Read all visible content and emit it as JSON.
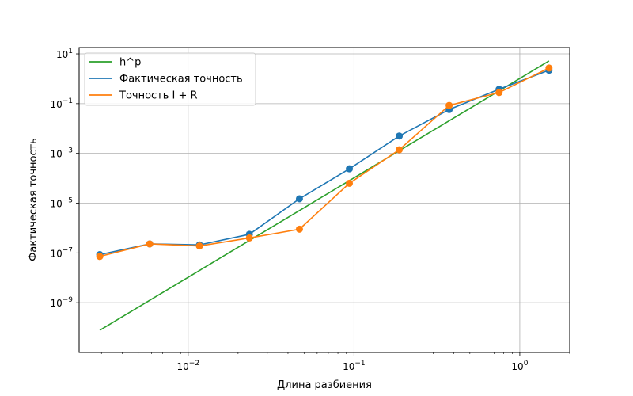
{
  "chart_data": {
    "type": "line",
    "title": "",
    "xlabel": "Длина разбиения",
    "ylabel": "Фактическая точность",
    "xscale": "log",
    "yscale": "log",
    "xlim": [
      0.0022,
      2.0
    ],
    "ylim": [
      1e-11,
      18
    ],
    "grid": true,
    "legend_position": "top-left",
    "x_ticks": [
      {
        "value": 0.01,
        "base": "10",
        "exp": "−2"
      },
      {
        "value": 0.1,
        "base": "10",
        "exp": "−1"
      },
      {
        "value": 1,
        "base": "10",
        "exp": "0"
      }
    ],
    "y_ticks": [
      {
        "value": 1e-09,
        "base": "10",
        "exp": "−9"
      },
      {
        "value": 1e-07,
        "base": "10",
        "exp": "−7"
      },
      {
        "value": 1e-05,
        "base": "10",
        "exp": "−5"
      },
      {
        "value": 0.001,
        "base": "10",
        "exp": "−3"
      },
      {
        "value": 0.1,
        "base": "10",
        "exp": "−1"
      },
      {
        "value": 10,
        "base": "10",
        "exp": "1"
      }
    ],
    "series": [
      {
        "name": "h^p",
        "color": "#2ca02c",
        "markers": false,
        "x": [
          0.00293,
          1.5
        ],
        "y": [
          7.8e-11,
          5.2
        ]
      },
      {
        "name": "Фактическая точность",
        "color": "#1f77b4",
        "markers": true,
        "x": [
          0.00293,
          0.00586,
          0.0117,
          0.0234,
          0.0469,
          0.0938,
          0.1875,
          0.375,
          0.75,
          1.5
        ],
        "y": [
          8.5e-08,
          2.3e-07,
          2.1e-07,
          5.6e-07,
          1.5e-05,
          0.00024,
          0.005,
          0.058,
          0.38,
          2.2
        ]
      },
      {
        "name": "Точность I + R",
        "color": "#ff7f0e",
        "markers": true,
        "x": [
          0.00293,
          0.00586,
          0.0117,
          0.0234,
          0.0469,
          0.0938,
          0.1875,
          0.375,
          0.75,
          1.5
        ],
        "y": [
          7.2e-08,
          2.3e-07,
          1.9e-07,
          4e-07,
          9e-07,
          6.3e-05,
          0.0014,
          0.085,
          0.28,
          2.7
        ]
      }
    ]
  }
}
